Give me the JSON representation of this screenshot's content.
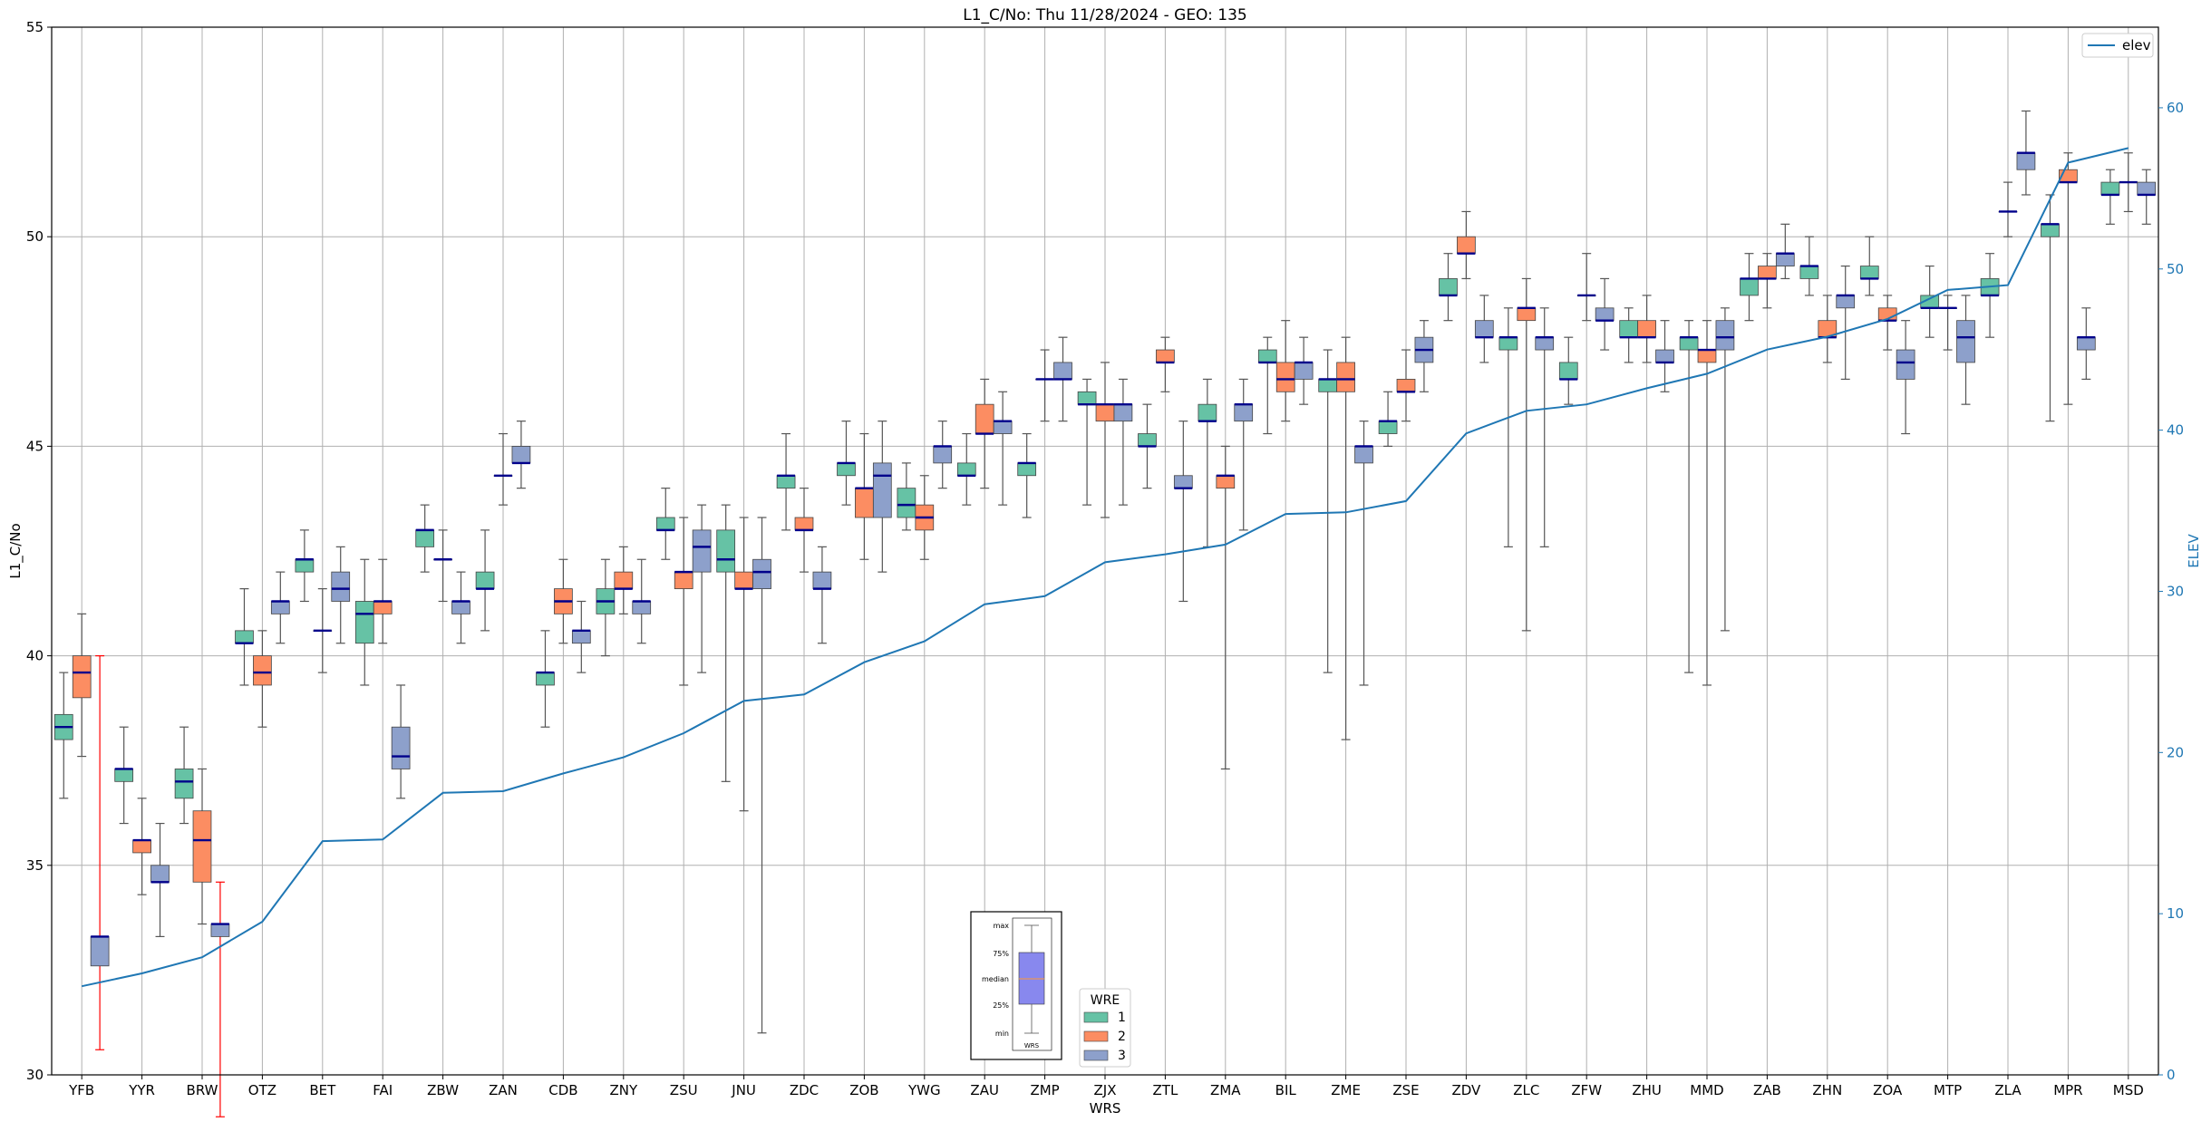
{
  "chart_data": {
    "type": "box",
    "title": "L1_C/No: Thu 11/28/2024 - GEO: 135",
    "xlabel": "WRS",
    "ylabel": "L1_C/No",
    "y2label": "ELEV",
    "ylim": [
      30,
      55
    ],
    "y2lim": [
      0,
      65
    ],
    "yticks": [
      30,
      35,
      40,
      45,
      50,
      55
    ],
    "y2ticks": [
      0,
      10,
      20,
      30,
      40,
      50,
      60
    ],
    "grid": true,
    "colors": {
      "1": "#66c2a5",
      "2": "#fc8d62",
      "3": "#8da0cb",
      "elev": "#1f77b4",
      "median": "#00008b",
      "red_whisker": "#ff0000"
    },
    "categories": [
      "YFB",
      "YYR",
      "BRW",
      "OTZ",
      "BET",
      "FAI",
      "ZBW",
      "ZAN",
      "CDB",
      "ZNY",
      "ZSU",
      "JNU",
      "ZDC",
      "ZOB",
      "YWG",
      "ZAU",
      "ZMP",
      "ZJX",
      "ZTL",
      "ZMA",
      "BIL",
      "ZME",
      "ZSE",
      "ZDV",
      "ZLC",
      "ZFW",
      "ZHU",
      "MMD",
      "ZAB",
      "ZHN",
      "ZOA",
      "MTP",
      "ZLA",
      "MPR",
      "MSD"
    ],
    "elev": [
      5.5,
      6.3,
      7.3,
      9.5,
      14.5,
      14.6,
      17.5,
      17.6,
      18.7,
      19.7,
      21.2,
      23.2,
      23.6,
      25.6,
      26.9,
      29.2,
      29.7,
      31.8,
      32.3,
      32.9,
      34.8,
      34.9,
      35.6,
      39.8,
      41.2,
      41.6,
      42.6,
      43.5,
      45.0,
      45.8,
      46.9,
      48.7,
      49.0,
      56.6,
      57.5
    ],
    "legend": {
      "title": "WRE",
      "entries": [
        "1",
        "2",
        "3"
      ],
      "line_entry": "elev"
    },
    "inset_legend": {
      "labels": [
        "max",
        "75%",
        "median",
        "25%",
        "min"
      ],
      "xlabel": "WRS"
    },
    "boxes": [
      {
        "station": "YFB",
        "wre": 1,
        "min": 36.6,
        "q1": 38.0,
        "median": 38.3,
        "q3": 38.6,
        "max": 39.6
      },
      {
        "station": "YFB",
        "wre": 2,
        "min": 37.6,
        "q1": 39.0,
        "median": 39.6,
        "q3": 40.0,
        "max": 41.0
      },
      {
        "station": "YFB",
        "wre": 3,
        "min": 30.6,
        "q1": 32.6,
        "median": 33.3,
        "q3": 33.3,
        "max": 40.0,
        "whisker": "red"
      },
      {
        "station": "YYR",
        "wre": 1,
        "min": 36.0,
        "q1": 37.0,
        "median": 37.3,
        "q3": 37.3,
        "max": 38.3
      },
      {
        "station": "YYR",
        "wre": 2,
        "min": 34.3,
        "q1": 35.3,
        "median": 35.6,
        "q3": 35.6,
        "max": 36.6
      },
      {
        "station": "YYR",
        "wre": 3,
        "min": 33.3,
        "q1": 34.6,
        "median": 34.6,
        "q3": 35.0,
        "max": 36.0
      },
      {
        "station": "BRW",
        "wre": 1,
        "min": 36.0,
        "q1": 36.6,
        "median": 37.0,
        "q3": 37.3,
        "max": 38.3
      },
      {
        "station": "BRW",
        "wre": 2,
        "min": 33.6,
        "q1": 34.6,
        "median": 35.6,
        "q3": 36.3,
        "max": 37.3
      },
      {
        "station": "BRW",
        "wre": 3,
        "min": 29.0,
        "q1": 33.3,
        "median": 33.6,
        "q3": 33.6,
        "max": 34.6,
        "whisker": "red"
      },
      {
        "station": "OTZ",
        "wre": 1,
        "min": 39.3,
        "q1": 40.3,
        "median": 40.3,
        "q3": 40.6,
        "max": 41.6
      },
      {
        "station": "OTZ",
        "wre": 2,
        "min": 38.3,
        "q1": 39.3,
        "median": 39.6,
        "q3": 40.0,
        "max": 40.6
      },
      {
        "station": "OTZ",
        "wre": 3,
        "min": 40.3,
        "q1": 41.0,
        "median": 41.3,
        "q3": 41.3,
        "max": 42.0
      },
      {
        "station": "BET",
        "wre": 1,
        "min": 41.3,
        "q1": 42.0,
        "median": 42.3,
        "q3": 42.3,
        "max": 43.0
      },
      {
        "station": "BET",
        "wre": 2,
        "min": 39.6,
        "q1": 40.6,
        "median": 40.6,
        "q3": 40.6,
        "max": 41.6
      },
      {
        "station": "BET",
        "wre": 3,
        "min": 40.3,
        "q1": 41.3,
        "median": 41.6,
        "q3": 42.0,
        "max": 42.6
      },
      {
        "station": "FAI",
        "wre": 1,
        "min": 39.3,
        "q1": 40.3,
        "median": 41.0,
        "q3": 41.3,
        "max": 42.3
      },
      {
        "station": "FAI",
        "wre": 2,
        "min": 40.3,
        "q1": 41.0,
        "median": 41.3,
        "q3": 41.3,
        "max": 42.3
      },
      {
        "station": "FAI",
        "wre": 3,
        "min": 36.6,
        "q1": 37.3,
        "median": 37.6,
        "q3": 38.3,
        "max": 39.3
      },
      {
        "station": "ZBW",
        "wre": 1,
        "min": 42.0,
        "q1": 42.6,
        "median": 43.0,
        "q3": 43.0,
        "max": 43.6
      },
      {
        "station": "ZBW",
        "wre": 2,
        "min": 41.3,
        "q1": 42.3,
        "median": 42.3,
        "q3": 42.3,
        "max": 43.0
      },
      {
        "station": "ZBW",
        "wre": 3,
        "min": 40.3,
        "q1": 41.0,
        "median": 41.3,
        "q3": 41.3,
        "max": 42.0
      },
      {
        "station": "ZAN",
        "wre": 1,
        "min": 40.6,
        "q1": 41.6,
        "median": 41.6,
        "q3": 42.0,
        "max": 43.0
      },
      {
        "station": "ZAN",
        "wre": 2,
        "min": 43.6,
        "q1": 44.3,
        "median": 44.3,
        "q3": 44.3,
        "max": 45.3
      },
      {
        "station": "ZAN",
        "wre": 3,
        "min": 44.0,
        "q1": 44.6,
        "median": 44.6,
        "q3": 45.0,
        "max": 45.6
      },
      {
        "station": "CDB",
        "wre": 1,
        "min": 38.3,
        "q1": 39.3,
        "median": 39.6,
        "q3": 39.6,
        "max": 40.6
      },
      {
        "station": "CDB",
        "wre": 2,
        "min": 40.3,
        "q1": 41.0,
        "median": 41.3,
        "q3": 41.6,
        "max": 42.3
      },
      {
        "station": "CDB",
        "wre": 3,
        "min": 39.6,
        "q1": 40.3,
        "median": 40.6,
        "q3": 40.6,
        "max": 41.3
      },
      {
        "station": "ZNY",
        "wre": 1,
        "min": 40.0,
        "q1": 41.0,
        "median": 41.3,
        "q3": 41.6,
        "max": 42.3
      },
      {
        "station": "ZNY",
        "wre": 2,
        "min": 41.0,
        "q1": 41.6,
        "median": 41.6,
        "q3": 42.0,
        "max": 42.6
      },
      {
        "station": "ZNY",
        "wre": 3,
        "min": 40.3,
        "q1": 41.0,
        "median": 41.3,
        "q3": 41.3,
        "max": 42.3
      },
      {
        "station": "ZSU",
        "wre": 1,
        "min": 42.3,
        "q1": 43.0,
        "median": 43.0,
        "q3": 43.3,
        "max": 44.0
      },
      {
        "station": "ZSU",
        "wre": 2,
        "min": 39.3,
        "q1": 41.6,
        "median": 42.0,
        "q3": 42.0,
        "max": 43.3
      },
      {
        "station": "ZSU",
        "wre": 3,
        "min": 39.6,
        "q1": 42.0,
        "median": 42.6,
        "q3": 43.0,
        "max": 43.6
      },
      {
        "station": "JNU",
        "wre": 1,
        "min": 37.0,
        "q1": 42.0,
        "median": 42.3,
        "q3": 43.0,
        "max": 43.6
      },
      {
        "station": "JNU",
        "wre": 2,
        "min": 36.3,
        "q1": 41.6,
        "median": 41.6,
        "q3": 42.0,
        "max": 43.3
      },
      {
        "station": "JNU",
        "wre": 3,
        "min": 31.0,
        "q1": 41.6,
        "median": 42.0,
        "q3": 42.3,
        "max": 43.3
      },
      {
        "station": "ZDC",
        "wre": 1,
        "min": 43.0,
        "q1": 44.0,
        "median": 44.3,
        "q3": 44.3,
        "max": 45.3
      },
      {
        "station": "ZDC",
        "wre": 2,
        "min": 42.0,
        "q1": 43.0,
        "median": 43.0,
        "q3": 43.3,
        "max": 44.0
      },
      {
        "station": "ZDC",
        "wre": 3,
        "min": 40.3,
        "q1": 41.6,
        "median": 41.6,
        "q3": 42.0,
        "max": 42.6
      },
      {
        "station": "ZOB",
        "wre": 1,
        "min": 43.6,
        "q1": 44.3,
        "median": 44.6,
        "q3": 44.6,
        "max": 45.6
      },
      {
        "station": "ZOB",
        "wre": 2,
        "min": 42.3,
        "q1": 43.3,
        "median": 44.0,
        "q3": 44.0,
        "max": 45.3
      },
      {
        "station": "ZOB",
        "wre": 3,
        "min": 42.0,
        "q1": 43.3,
        "median": 44.3,
        "q3": 44.6,
        "max": 45.6
      },
      {
        "station": "YWG",
        "wre": 1,
        "min": 43.0,
        "q1": 43.3,
        "median": 43.6,
        "q3": 44.0,
        "max": 44.6
      },
      {
        "station": "YWG",
        "wre": 2,
        "min": 42.3,
        "q1": 43.0,
        "median": 43.3,
        "q3": 43.6,
        "max": 44.3
      },
      {
        "station": "YWG",
        "wre": 3,
        "min": 44.0,
        "q1": 44.6,
        "median": 45.0,
        "q3": 45.0,
        "max": 45.6
      },
      {
        "station": "ZAU",
        "wre": 1,
        "min": 43.6,
        "q1": 44.3,
        "median": 44.3,
        "q3": 44.6,
        "max": 45.3
      },
      {
        "station": "ZAU",
        "wre": 2,
        "min": 44.0,
        "q1": 45.3,
        "median": 45.3,
        "q3": 46.0,
        "max": 46.6
      },
      {
        "station": "ZAU",
        "wre": 3,
        "min": 43.6,
        "q1": 45.3,
        "median": 45.6,
        "q3": 45.6,
        "max": 46.3
      },
      {
        "station": "ZMP",
        "wre": 1,
        "min": 43.3,
        "q1": 44.3,
        "median": 44.6,
        "q3": 44.6,
        "max": 45.3
      },
      {
        "station": "ZMP",
        "wre": 2,
        "min": 45.6,
        "q1": 46.6,
        "median": 46.6,
        "q3": 46.6,
        "max": 47.3
      },
      {
        "station": "ZMP",
        "wre": 3,
        "min": 45.6,
        "q1": 46.6,
        "median": 46.6,
        "q3": 47.0,
        "max": 47.6
      },
      {
        "station": "ZJX",
        "wre": 1,
        "min": 43.6,
        "q1": 46.0,
        "median": 46.0,
        "q3": 46.3,
        "max": 46.6
      },
      {
        "station": "ZJX",
        "wre": 2,
        "min": 43.3,
        "q1": 45.6,
        "median": 46.0,
        "q3": 46.0,
        "max": 47.0
      },
      {
        "station": "ZJX",
        "wre": 3,
        "min": 43.6,
        "q1": 45.6,
        "median": 46.0,
        "q3": 46.0,
        "max": 46.6
      },
      {
        "station": "ZTL",
        "wre": 1,
        "min": 44.0,
        "q1": 45.0,
        "median": 45.0,
        "q3": 45.3,
        "max": 46.0
      },
      {
        "station": "ZTL",
        "wre": 2,
        "min": 46.3,
        "q1": 47.0,
        "median": 47.0,
        "q3": 47.3,
        "max": 47.6
      },
      {
        "station": "ZTL",
        "wre": 3,
        "min": 41.3,
        "q1": 44.0,
        "median": 44.0,
        "q3": 44.3,
        "max": 45.6
      },
      {
        "station": "ZMA",
        "wre": 1,
        "min": 42.6,
        "q1": 45.6,
        "median": 45.6,
        "q3": 46.0,
        "max": 46.6
      },
      {
        "station": "ZMA",
        "wre": 2,
        "min": 37.3,
        "q1": 44.0,
        "median": 44.3,
        "q3": 44.3,
        "max": 45.0
      },
      {
        "station": "ZMA",
        "wre": 3,
        "min": 43.0,
        "q1": 45.6,
        "median": 46.0,
        "q3": 46.0,
        "max": 46.6
      },
      {
        "station": "BIL",
        "wre": 1,
        "min": 45.3,
        "q1": 47.0,
        "median": 47.0,
        "q3": 47.3,
        "max": 47.6
      },
      {
        "station": "BIL",
        "wre": 2,
        "min": 45.6,
        "q1": 46.3,
        "median": 46.6,
        "q3": 47.0,
        "max": 48.0
      },
      {
        "station": "BIL",
        "wre": 3,
        "min": 46.0,
        "q1": 46.6,
        "median": 47.0,
        "q3": 47.0,
        "max": 47.6
      },
      {
        "station": "ZME",
        "wre": 1,
        "min": 39.6,
        "q1": 46.3,
        "median": 46.6,
        "q3": 46.6,
        "max": 47.3
      },
      {
        "station": "ZME",
        "wre": 2,
        "min": 38.0,
        "q1": 46.3,
        "median": 46.6,
        "q3": 47.0,
        "max": 47.6
      },
      {
        "station": "ZME",
        "wre": 3,
        "min": 39.3,
        "q1": 44.6,
        "median": 45.0,
        "q3": 45.0,
        "max": 45.6
      },
      {
        "station": "ZSE",
        "wre": 1,
        "min": 45.0,
        "q1": 45.3,
        "median": 45.6,
        "q3": 45.6,
        "max": 46.3
      },
      {
        "station": "ZSE",
        "wre": 2,
        "min": 45.6,
        "q1": 46.3,
        "median": 46.3,
        "q3": 46.6,
        "max": 47.3
      },
      {
        "station": "ZSE",
        "wre": 3,
        "min": 46.3,
        "q1": 47.0,
        "median": 47.3,
        "q3": 47.6,
        "max": 48.0
      },
      {
        "station": "ZDV",
        "wre": 1,
        "min": 48.0,
        "q1": 48.6,
        "median": 48.6,
        "q3": 49.0,
        "max": 49.6
      },
      {
        "station": "ZDV",
        "wre": 2,
        "min": 49.0,
        "q1": 49.6,
        "median": 49.6,
        "q3": 50.0,
        "max": 50.6
      },
      {
        "station": "ZDV",
        "wre": 3,
        "min": 47.0,
        "q1": 47.6,
        "median": 47.6,
        "q3": 48.0,
        "max": 48.6
      },
      {
        "station": "ZLC",
        "wre": 1,
        "min": 42.6,
        "q1": 47.3,
        "median": 47.6,
        "q3": 47.6,
        "max": 48.3
      },
      {
        "station": "ZLC",
        "wre": 2,
        "min": 40.6,
        "q1": 48.0,
        "median": 48.3,
        "q3": 48.3,
        "max": 49.0
      },
      {
        "station": "ZLC",
        "wre": 3,
        "min": 42.6,
        "q1": 47.3,
        "median": 47.6,
        "q3": 47.6,
        "max": 48.3
      },
      {
        "station": "ZFW",
        "wre": 1,
        "min": 46.0,
        "q1": 46.6,
        "median": 46.6,
        "q3": 47.0,
        "max": 47.6
      },
      {
        "station": "ZFW",
        "wre": 2,
        "min": 48.0,
        "q1": 48.6,
        "median": 48.6,
        "q3": 48.6,
        "max": 49.6
      },
      {
        "station": "ZFW",
        "wre": 3,
        "min": 47.3,
        "q1": 48.0,
        "median": 48.0,
        "q3": 48.3,
        "max": 49.0
      },
      {
        "station": "ZHU",
        "wre": 1,
        "min": 47.0,
        "q1": 47.6,
        "median": 47.6,
        "q3": 48.0,
        "max": 48.3
      },
      {
        "station": "ZHU",
        "wre": 2,
        "min": 47.0,
        "q1": 47.6,
        "median": 47.6,
        "q3": 48.0,
        "max": 48.6
      },
      {
        "station": "ZHU",
        "wre": 3,
        "min": 46.3,
        "q1": 47.0,
        "median": 47.0,
        "q3": 47.3,
        "max": 48.0
      },
      {
        "station": "MMD",
        "wre": 1,
        "min": 39.6,
        "q1": 47.3,
        "median": 47.6,
        "q3": 47.6,
        "max": 48.0
      },
      {
        "station": "MMD",
        "wre": 2,
        "min": 39.3,
        "q1": 47.0,
        "median": 47.3,
        "q3": 47.3,
        "max": 48.0
      },
      {
        "station": "MMD",
        "wre": 3,
        "min": 40.6,
        "q1": 47.3,
        "median": 47.6,
        "q3": 48.0,
        "max": 48.3
      },
      {
        "station": "ZAB",
        "wre": 1,
        "min": 48.0,
        "q1": 48.6,
        "median": 49.0,
        "q3": 49.0,
        "max": 49.6
      },
      {
        "station": "ZAB",
        "wre": 2,
        "min": 48.3,
        "q1": 49.0,
        "median": 49.0,
        "q3": 49.3,
        "max": 49.6
      },
      {
        "station": "ZAB",
        "wre": 3,
        "min": 49.0,
        "q1": 49.3,
        "median": 49.6,
        "q3": 49.6,
        "max": 50.3
      },
      {
        "station": "ZHN",
        "wre": 1,
        "min": 48.6,
        "q1": 49.0,
        "median": 49.3,
        "q3": 49.3,
        "max": 50.0
      },
      {
        "station": "ZHN",
        "wre": 2,
        "min": 47.0,
        "q1": 47.6,
        "median": 47.6,
        "q3": 48.0,
        "max": 48.6
      },
      {
        "station": "ZHN",
        "wre": 3,
        "min": 46.6,
        "q1": 48.3,
        "median": 48.6,
        "q3": 48.6,
        "max": 49.3
      },
      {
        "station": "ZOA",
        "wre": 1,
        "min": 48.6,
        "q1": 49.0,
        "median": 49.0,
        "q3": 49.3,
        "max": 50.0
      },
      {
        "station": "ZOA",
        "wre": 2,
        "min": 47.3,
        "q1": 48.0,
        "median": 48.0,
        "q3": 48.3,
        "max": 48.6
      },
      {
        "station": "ZOA",
        "wre": 3,
        "min": 45.3,
        "q1": 46.6,
        "median": 47.0,
        "q3": 47.3,
        "max": 48.0
      },
      {
        "station": "MTP",
        "wre": 1,
        "min": 47.6,
        "q1": 48.3,
        "median": 48.3,
        "q3": 48.6,
        "max": 49.3
      },
      {
        "station": "MTP",
        "wre": 2,
        "min": 47.3,
        "q1": 48.3,
        "median": 48.3,
        "q3": 48.3,
        "max": 48.6
      },
      {
        "station": "MTP",
        "wre": 3,
        "min": 46.0,
        "q1": 47.0,
        "median": 47.6,
        "q3": 48.0,
        "max": 48.6
      },
      {
        "station": "ZLA",
        "wre": 1,
        "min": 47.6,
        "q1": 48.6,
        "median": 48.6,
        "q3": 49.0,
        "max": 49.6
      },
      {
        "station": "ZLA",
        "wre": 2,
        "min": 50.0,
        "q1": 50.6,
        "median": 50.6,
        "q3": 50.6,
        "max": 51.3
      },
      {
        "station": "ZLA",
        "wre": 3,
        "min": 51.0,
        "q1": 51.6,
        "median": 52.0,
        "q3": 52.0,
        "max": 53.0
      },
      {
        "station": "MPR",
        "wre": 1,
        "min": 45.6,
        "q1": 50.0,
        "median": 50.3,
        "q3": 50.3,
        "max": 51.0
      },
      {
        "station": "MPR",
        "wre": 2,
        "min": 46.0,
        "q1": 51.3,
        "median": 51.3,
        "q3": 51.6,
        "max": 52.0
      },
      {
        "station": "MPR",
        "wre": 3,
        "min": 46.6,
        "q1": 47.3,
        "median": 47.6,
        "q3": 47.6,
        "max": 48.3
      },
      {
        "station": "MSD",
        "wre": 1,
        "min": 50.3,
        "q1": 51.0,
        "median": 51.0,
        "q3": 51.3,
        "max": 51.6
      },
      {
        "station": "MSD",
        "wre": 2,
        "min": 50.6,
        "q1": 51.3,
        "median": 51.3,
        "q3": 51.3,
        "max": 52.0
      },
      {
        "station": "MSD",
        "wre": 3,
        "min": 50.3,
        "q1": 51.0,
        "median": 51.0,
        "q3": 51.3,
        "max": 51.6
      }
    ]
  }
}
